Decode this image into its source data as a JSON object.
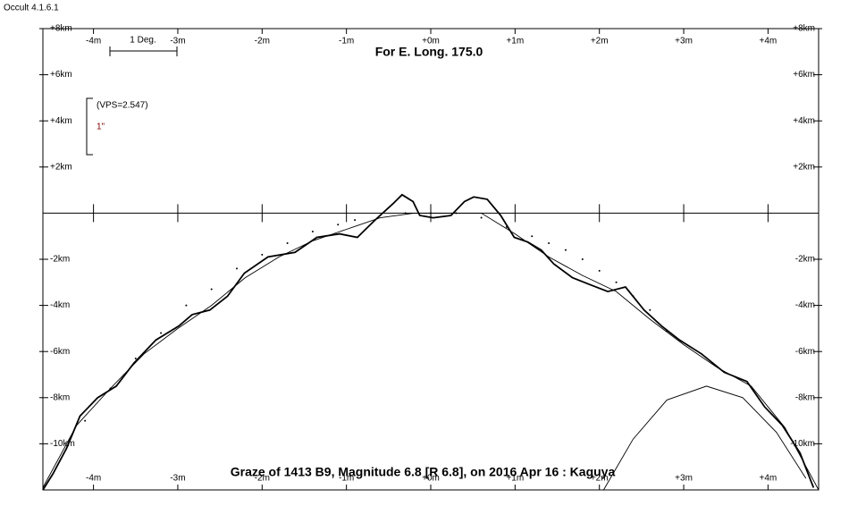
{
  "window_title": "Occult 4.1.6.1",
  "chart_data": {
    "type": "line",
    "title": "For E. Long. 175.0",
    "subtitle": "Graze of  1413 B9,  Magnitude 6.8 [R 6.8],  on 2016 Apr 16  :  Kaguya",
    "annotations": [
      "1 Deg.",
      "(VPS=2.547)",
      "1\""
    ],
    "xlim": [
      -4.6,
      4.6
    ],
    "ylim": [
      -12,
      8
    ],
    "xticks": [
      {
        "value": -4,
        "label": "-4m"
      },
      {
        "value": -3,
        "label": "-3m"
      },
      {
        "value": -2,
        "label": "-2m"
      },
      {
        "value": -1,
        "label": "-1m"
      },
      {
        "value": 0,
        "label": "+0m"
      },
      {
        "value": 1,
        "label": "+1m"
      },
      {
        "value": 2,
        "label": "+2m"
      },
      {
        "value": 3,
        "label": "+3m"
      },
      {
        "value": 4,
        "label": "+4m"
      }
    ],
    "yticks": [
      {
        "value": 8,
        "label": "+8km"
      },
      {
        "value": 6,
        "label": "+6km"
      },
      {
        "value": 4,
        "label": "+4km"
      },
      {
        "value": 2,
        "label": "+2km"
      },
      {
        "value": -2,
        "label": "-2km"
      },
      {
        "value": -4,
        "label": "-4km"
      },
      {
        "value": -6,
        "label": "-6km"
      },
      {
        "value": -8,
        "label": "-8km"
      },
      {
        "value": -10,
        "label": "-10km"
      }
    ],
    "color": "#000000",
    "series": [
      {
        "style": "jagged",
        "color": "#000000",
        "x": [
          -4.6,
          -4.48,
          -4.32,
          -4.16,
          -3.95,
          -3.73,
          -3.52,
          -3.26,
          -2.99,
          -2.83,
          -2.62,
          -2.41,
          -2.21,
          -1.93,
          -1.61,
          -1.35,
          -1.08,
          -0.87,
          -0.66,
          -0.45,
          -0.34,
          -0.21,
          -0.13,
          0.03,
          0.24,
          0.4,
          0.51,
          0.67,
          0.83,
          0.99,
          1.15,
          1.31,
          1.46,
          1.68,
          1.89,
          2.1,
          2.31,
          2.53,
          2.74,
          2.95,
          3.21,
          3.48,
          3.75,
          3.96,
          4.17,
          4.38,
          4.54
        ],
        "values": [
          -12,
          -11.3,
          -10.2,
          -8.8,
          -8.0,
          -7.5,
          -6.5,
          -5.5,
          -4.9,
          -4.4,
          -4.2,
          -3.6,
          -2.6,
          -1.9,
          -1.7,
          -1.05,
          -0.9,
          -1.05,
          -0.3,
          0.4,
          0.8,
          0.5,
          -0.1,
          -0.2,
          -0.1,
          0.5,
          0.7,
          0.6,
          -0.1,
          -1.05,
          -1.25,
          -1.6,
          -2.2,
          -2.8,
          -3.1,
          -3.4,
          -3.2,
          -4.2,
          -4.9,
          -5.5,
          -6.1,
          -6.9,
          -7.3,
          -8.4,
          -9.2,
          -10.4,
          -11.9
        ]
      },
      {
        "style": "smooth",
        "color": "#000000",
        "x": [
          -4.6,
          -4.2,
          -3.8,
          -3.4,
          -3.0,
          -2.6,
          -2.2,
          -1.8,
          -1.4,
          -1.0,
          -0.6,
          -0.2,
          0.2,
          0.6,
          1.0,
          1.4,
          1.8,
          2.2,
          2.6,
          3.0,
          3.4,
          3.8,
          4.2,
          4.6
        ],
        "values": [
          -11.9,
          -9.2,
          -7.6,
          -6.1,
          -5.0,
          -4.0,
          -2.8,
          -1.9,
          -1.2,
          -0.7,
          -0.2,
          0.0,
          0.0,
          0.0,
          -0.9,
          -1.9,
          -2.7,
          -3.4,
          -4.6,
          -5.7,
          -6.7,
          -7.5,
          -9.3,
          -12.0
        ]
      },
      {
        "style": "dots",
        "color": "#000000",
        "x": [
          -4.1,
          -3.8,
          -3.5,
          -3.2,
          -2.9,
          -2.6,
          -2.3,
          -2.0,
          -1.7,
          -1.4,
          -1.1,
          -0.9,
          -0.6,
          -0.3,
          0.0,
          0.3,
          0.6,
          0.9,
          1.2,
          1.4,
          1.6,
          1.8,
          2.0,
          2.2,
          2.4,
          2.6,
          2.8
        ],
        "values": [
          -9.0,
          -7.6,
          -6.3,
          -5.2,
          -4.0,
          -3.3,
          -2.4,
          -1.8,
          -1.3,
          -0.8,
          -0.5,
          -0.3,
          -0.1,
          0.0,
          0.0,
          0.0,
          -0.2,
          -0.6,
          -1.0,
          -1.3,
          -1.6,
          -2.0,
          -2.5,
          -3.0,
          -3.6,
          -4.2,
          -5.1
        ]
      },
      {
        "style": "smooth",
        "color": "#000000",
        "x": [
          2.05,
          2.4,
          2.8,
          3.27,
          3.7,
          4.1,
          4.45
        ],
        "values": [
          -12,
          -9.8,
          -8.1,
          -7.5,
          -8.0,
          -9.5,
          -11.5
        ]
      }
    ]
  }
}
